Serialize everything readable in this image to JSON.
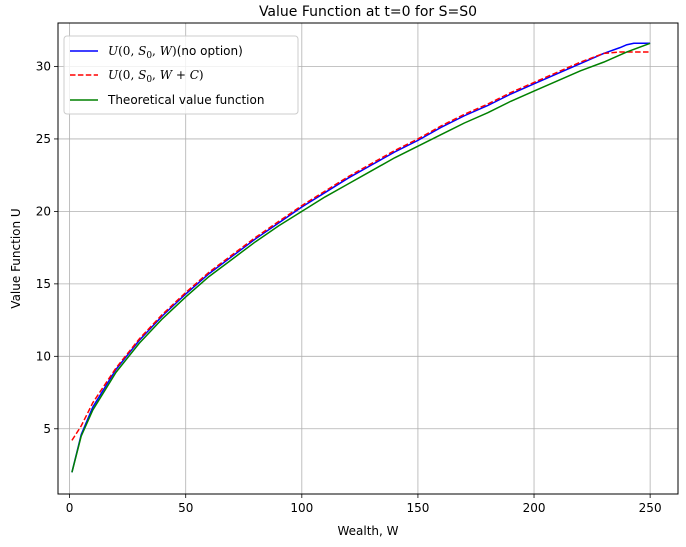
{
  "chart_data": {
    "type": "line",
    "title": "Value Function at t=0 for S=S0",
    "xlabel": "Wealth, W",
    "ylabel": "Value Function U",
    "xlim": [
      -5,
      262
    ],
    "ylim": [
      0.5,
      33.0
    ],
    "xticks": [
      0,
      50,
      100,
      150,
      200,
      250
    ],
    "yticks": [
      5,
      10,
      15,
      20,
      25,
      30
    ],
    "grid": true,
    "legend_position": "upper-left",
    "series": [
      {
        "name": "U(0, S0, W)(no option)",
        "color": "#0000ff",
        "style": "solid",
        "x": [
          1,
          5,
          10,
          20,
          30,
          40,
          50,
          60,
          70,
          80,
          90,
          100,
          110,
          120,
          130,
          140,
          150,
          160,
          170,
          180,
          190,
          200,
          210,
          220,
          230,
          237,
          240,
          243,
          245,
          248,
          250
        ],
        "y": [
          2.0,
          4.6,
          6.5,
          9.1,
          11.1,
          12.8,
          14.3,
          15.7,
          16.9,
          18.1,
          19.2,
          20.3,
          21.3,
          22.3,
          23.2,
          24.1,
          24.9,
          25.8,
          26.6,
          27.3,
          28.1,
          28.8,
          29.5,
          30.2,
          30.9,
          31.3,
          31.5,
          31.6,
          31.6,
          31.6,
          31.6
        ]
      },
      {
        "name": "U(0, S0, W+C)",
        "color": "#ff0000",
        "style": "dashed",
        "x": [
          1,
          5,
          10,
          20,
          30,
          40,
          50,
          60,
          70,
          80,
          90,
          100,
          110,
          120,
          130,
          140,
          150,
          160,
          170,
          180,
          190,
          200,
          210,
          220,
          230,
          237,
          240,
          245,
          250
        ],
        "y": [
          4.2,
          5.2,
          6.8,
          9.2,
          11.2,
          12.9,
          14.4,
          15.8,
          17.0,
          18.2,
          19.3,
          20.4,
          21.4,
          22.4,
          23.3,
          24.2,
          25.0,
          25.9,
          26.7,
          27.4,
          28.2,
          28.9,
          29.6,
          30.3,
          30.9,
          31.0,
          31.0,
          31.0,
          31.0
        ]
      },
      {
        "name": "Theoretical value function",
        "color": "#008000",
        "style": "solid",
        "x": [
          1,
          5,
          10,
          20,
          30,
          40,
          50,
          60,
          70,
          80,
          90,
          100,
          110,
          120,
          130,
          140,
          150,
          160,
          170,
          180,
          190,
          200,
          210,
          220,
          230,
          240,
          250
        ],
        "y": [
          2.0,
          4.5,
          6.3,
          8.9,
          10.9,
          12.6,
          14.1,
          15.5,
          16.7,
          17.9,
          19.0,
          20.0,
          21.0,
          21.9,
          22.8,
          23.7,
          24.5,
          25.3,
          26.1,
          26.8,
          27.6,
          28.3,
          29.0,
          29.7,
          30.3,
          31.0,
          31.6
        ]
      }
    ]
  }
}
